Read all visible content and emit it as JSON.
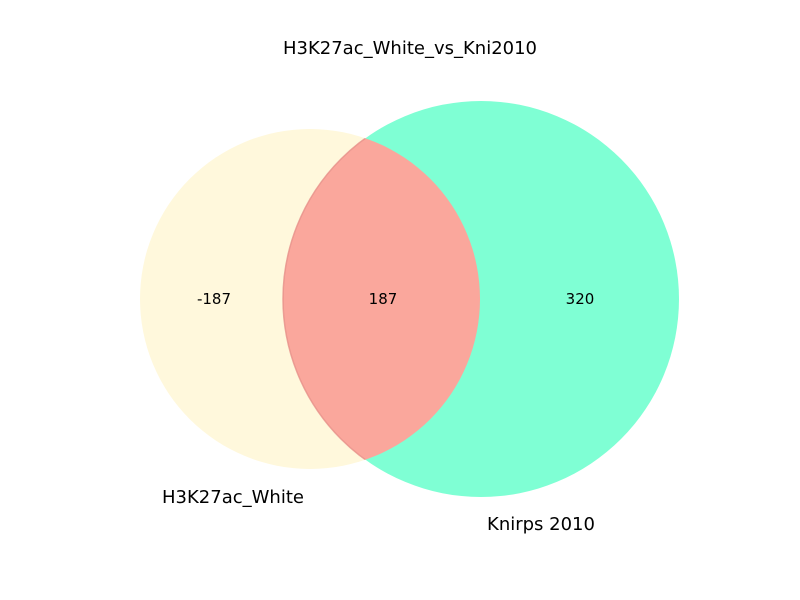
{
  "title": "H3K27ac_White_vs_Kni2010",
  "sets": {
    "a": {
      "name": "H3K27ac_White",
      "color": "#FFF8DC"
    },
    "b": {
      "name": "Knirps 2010",
      "color": "#7FFFD4"
    }
  },
  "intersection_color": "#FAA79C",
  "counts": {
    "only_a": "-187",
    "both": "187",
    "only_b": "320"
  },
  "chart_data": {
    "type": "venn",
    "title": "H3K27ac_White_vs_Kni2010",
    "sets": [
      "H3K27ac_White",
      "Knirps 2010"
    ],
    "regions": [
      {
        "region": "H3K27ac_White only",
        "value": -187
      },
      {
        "region": "H3K27ac_White & Knirps 2010",
        "value": 187
      },
      {
        "region": "Knirps 2010 only",
        "value": 320
      }
    ]
  }
}
